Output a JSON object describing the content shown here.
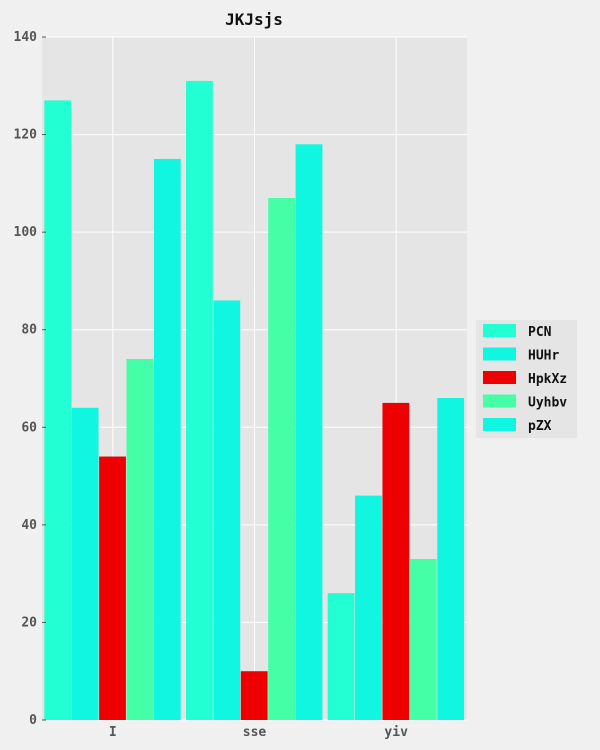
{
  "chart_data": {
    "type": "bar",
    "title": "JKJsjs",
    "xlabel": "",
    "ylabel": "",
    "categories": [
      "I",
      "sse",
      "yiv"
    ],
    "ylim": [
      0,
      140
    ],
    "yticks": [
      0,
      20,
      40,
      60,
      80,
      100,
      120,
      140
    ],
    "grid": true,
    "legend_position": "right",
    "series": [
      {
        "name": "PCN",
        "color": "#22ffd2",
        "values": [
          127,
          131,
          26
        ]
      },
      {
        "name": "HUHr",
        "color": "#11f6e0",
        "values": [
          64,
          86,
          46
        ]
      },
      {
        "name": "HpkXz",
        "color": "#ee0000",
        "values": [
          54,
          10,
          65
        ]
      },
      {
        "name": "Uyhbv",
        "color": "#44ffa6",
        "values": [
          74,
          107,
          33
        ]
      },
      {
        "name": "pZX",
        "color": "#11f6e0",
        "values": [
          115,
          118,
          66
        ]
      }
    ]
  },
  "colors": {
    "page_background": "#f0f0f0",
    "plot_background": "#e5e5e5",
    "grid": "#ffffff"
  }
}
